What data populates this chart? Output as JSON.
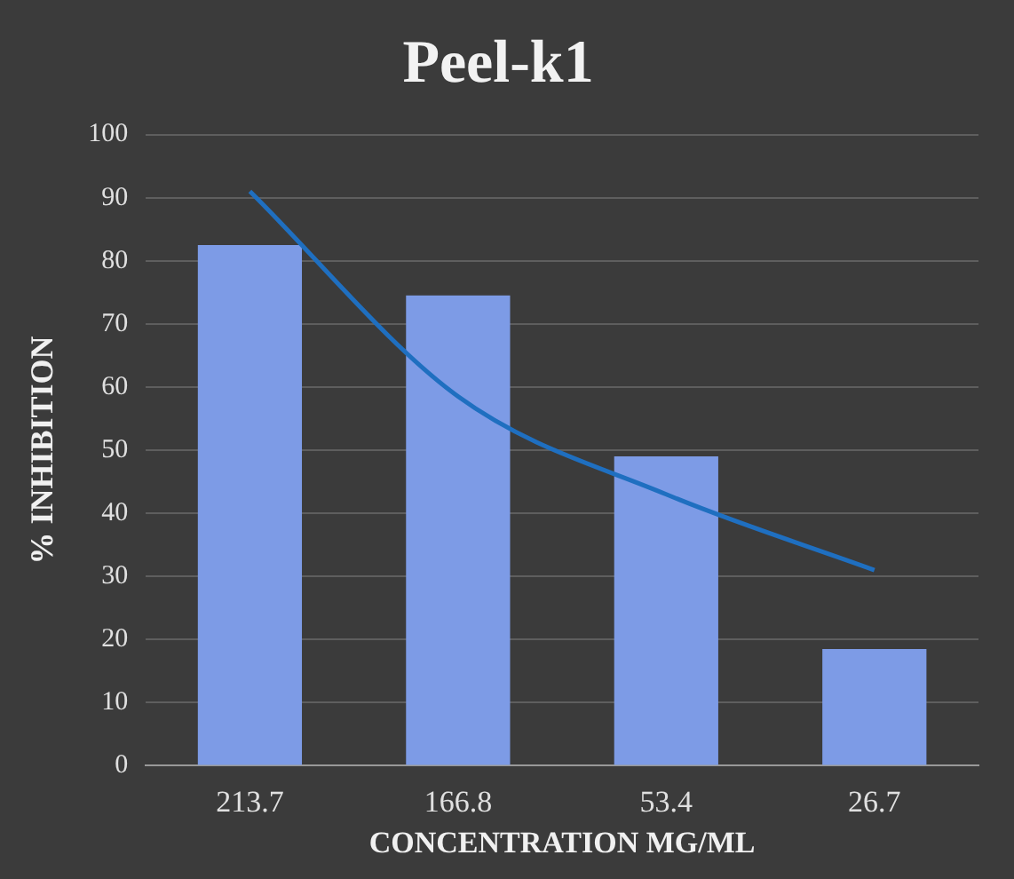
{
  "chart_data": {
    "type": "bar",
    "title": "Peel-k1",
    "xlabel": "CONCENTRATION MG/ML",
    "ylabel": "% INHIBITION",
    "categories": [
      "213.7",
      "166.8",
      "53.4",
      "26.7"
    ],
    "series": [
      {
        "color": "#7d9be6",
        "values": [
          82.5,
          74.5,
          49,
          18.5
        ]
      },
      {
        "type": "line",
        "color": "#1f6fc0",
        "values": [
          91,
          58.5,
          43,
          31
        ]
      }
    ],
    "ylim": [
      0,
      100
    ],
    "yticks": [
      0,
      10,
      20,
      30,
      40,
      50,
      60,
      70,
      80,
      90,
      100
    ],
    "grid": "y",
    "legend": false,
    "marker": "none"
  }
}
